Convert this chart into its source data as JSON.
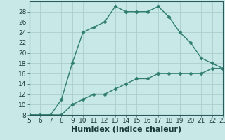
{
  "xlabel": "Humidex (Indice chaleur)",
  "x_upper": [
    5,
    6,
    7,
    8,
    9,
    10,
    11,
    12,
    13,
    14,
    15,
    16,
    17,
    18,
    19,
    20,
    21,
    22,
    23
  ],
  "y_upper": [
    8,
    8,
    8,
    11,
    18,
    24,
    25,
    26,
    29,
    28,
    28,
    28,
    29,
    27,
    24,
    22,
    19,
    18,
    17
  ],
  "x_lower": [
    5,
    6,
    7,
    8,
    9,
    10,
    11,
    12,
    13,
    14,
    15,
    16,
    17,
    18,
    19,
    20,
    21,
    22,
    23
  ],
  "y_lower": [
    8,
    8,
    8,
    8,
    10,
    11,
    12,
    12,
    13,
    14,
    15,
    15,
    16,
    16,
    16,
    16,
    16,
    17,
    17
  ],
  "line_color": "#2e7d6e",
  "bg_color": "#c8e8e8",
  "grid_color": "#aacece",
  "xlim": [
    5,
    23
  ],
  "ylim": [
    8,
    30
  ],
  "xticks": [
    5,
    6,
    7,
    8,
    9,
    10,
    11,
    12,
    13,
    14,
    15,
    16,
    17,
    18,
    19,
    20,
    21,
    22,
    23
  ],
  "yticks": [
    8,
    10,
    12,
    14,
    16,
    18,
    20,
    22,
    24,
    26,
    28
  ],
  "marker": "D",
  "markersize": 2.5,
  "linewidth": 1.0,
  "xlabel_fontsize": 8,
  "tick_fontsize": 6.5
}
